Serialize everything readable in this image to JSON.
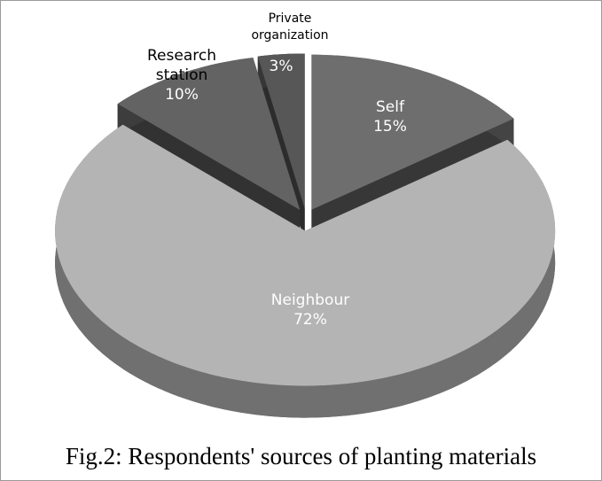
{
  "chart_data": {
    "type": "pie",
    "categories": [
      "Self",
      "Neighbour",
      "Research station",
      "Private organization"
    ],
    "values": [
      15,
      72,
      10,
      3
    ],
    "value_labels": [
      "15%",
      "72%",
      "10%",
      "3%"
    ],
    "colors": [
      "#6e6e6e",
      "#b4b4b4",
      "#636363",
      "#575757"
    ],
    "caption": "Fig.2: Respondents' sources of planting materials"
  }
}
